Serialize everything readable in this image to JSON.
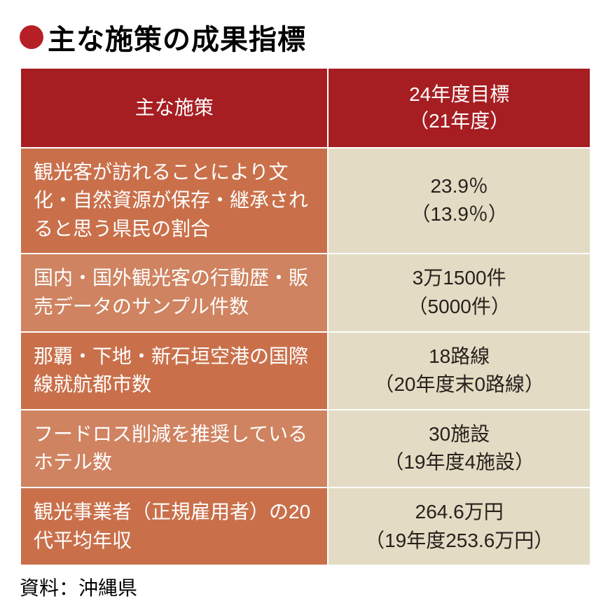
{
  "title": {
    "bullet_color": "#b71f27",
    "text": "主な施策の成果指標",
    "text_color": "#000000",
    "fontsize": 40
  },
  "table": {
    "type": "table",
    "header_bg": "#a61e22",
    "header_text_color": "#ffffff",
    "policy_col_bg_odd": "#c9704b",
    "policy_col_bg_even": "#cf8360",
    "target_col_bg": "#e4dbc4",
    "target_col_bg_alt": "#e4dbc4",
    "target_text_color": "#27211d",
    "policy_text_color": "#ffffff",
    "border_spacing": 2,
    "cell_fontsize": 28,
    "columns": [
      {
        "label": "主な施策",
        "width_pct": 54
      },
      {
        "label": "24年度目標\n（21年度）",
        "width_pct": 46
      }
    ],
    "rows": [
      {
        "policy": "観光客が訪れることにより文化・自然資源が保存・継承されると思う県民の割合",
        "target_main": "23.9％",
        "target_sub": "（13.9％）"
      },
      {
        "policy": "国内・国外観光客の行動歴・販売データのサンプル件数",
        "target_main": "3万1500件",
        "target_sub": "（5000件）"
      },
      {
        "policy": "那覇・下地・新石垣空港の国際線就航都市数",
        "target_main": "18路線",
        "target_sub": "（20年度末0路線）"
      },
      {
        "policy": "フードロス削減を推奨しているホテル数",
        "target_main": "30施設",
        "target_sub": "（19年度4施設）"
      },
      {
        "policy": "観光事業者（正規雇用者）の20代平均年収",
        "target_main": "264.6万円",
        "target_sub": "（19年度253.6万円）"
      }
    ]
  },
  "source": {
    "text": "資料：沖縄県",
    "color": "#000000",
    "fontsize": 28
  }
}
